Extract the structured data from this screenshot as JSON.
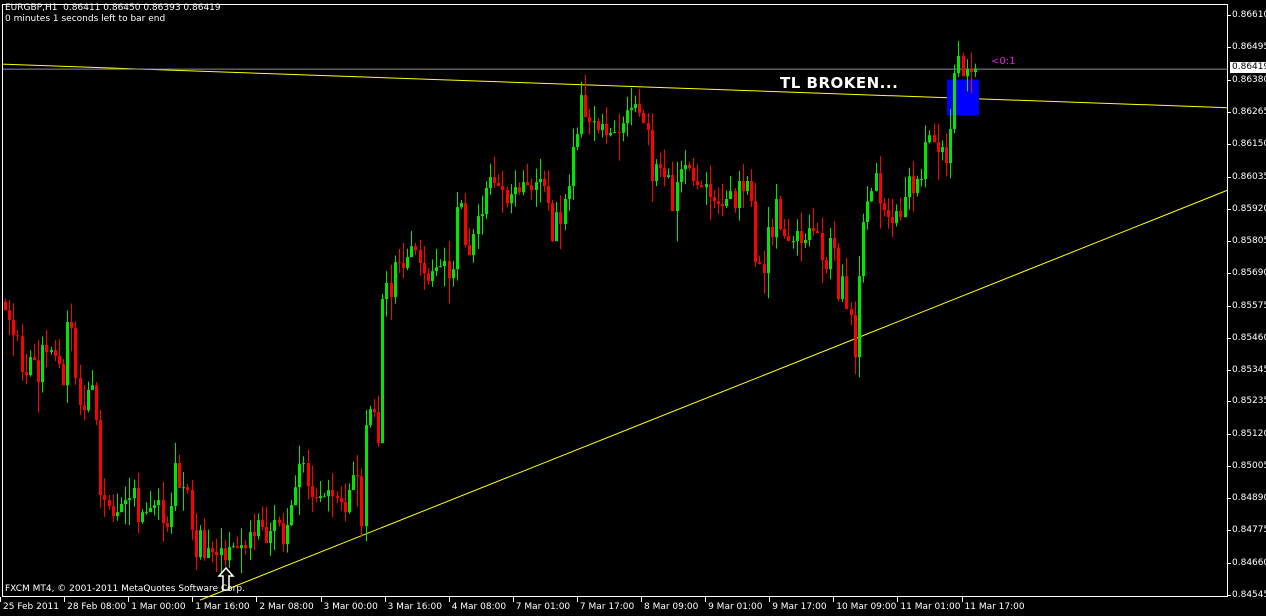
{
  "header": {
    "symbol_line": "EURGBP,H1  0.86411 0.86450 0.86393 0.86419",
    "timer": "0 minutes 1 seconds left to bar end"
  },
  "footer": "FXCM MT4, © 2001-2011 MetaQuotes Software Corp.",
  "annotation": "TL BROKEN...",
  "order_tag": "<0:1",
  "colors": {
    "background": "#000000",
    "bull": "#00e600",
    "bear": "#ff0000",
    "trendline": "#ffff00",
    "axis": "#ffffff",
    "highlight_box": "#0000ff",
    "bid_line": "#8c8c8c",
    "order_tag": "#e020e0"
  },
  "chart_data": {
    "type": "candlestick",
    "symbol": "EURGBP",
    "timeframe": "H1",
    "ylim": [
      0.84545,
      0.8661
    ],
    "price_ticks": [
      "0.86610",
      "0.86495",
      "0.86380",
      "0.86265",
      "0.86150",
      "0.86035",
      "0.85920",
      "0.85805",
      "0.85690",
      "0.85575",
      "0.85460",
      "0.85345",
      "0.85235",
      "0.85120",
      "0.85005",
      "0.84890",
      "0.84775",
      "0.84660",
      "0.84545"
    ],
    "bid": "0.86419",
    "time_labels": [
      "25 Feb 2011",
      "28 Feb 08:00",
      "1 Mar 00:00",
      "1 Mar 16:00",
      "2 Mar 08:00",
      "3 Mar 00:00",
      "3 Mar 16:00",
      "4 Mar 08:00",
      "7 Mar 01:00",
      "7 Mar 17:00",
      "8 Mar 09:00",
      "9 Mar 01:00",
      "9 Mar 17:00",
      "10 Mar 09:00",
      "11 Mar 01:00",
      "11 Mar 17:00"
    ],
    "close": [
      0.85559,
      0.85524,
      0.8547,
      0.85467,
      0.85339,
      0.85328,
      0.85392,
      0.85381,
      0.85303,
      0.85435,
      0.8541,
      0.85417,
      0.85396,
      0.85367,
      0.85292,
      0.85517,
      0.85495,
      0.85317,
      0.85221,
      0.85203,
      0.85275,
      0.85292,
      0.85168,
      0.84901,
      0.84883,
      0.84862,
      0.84826,
      0.8484,
      0.84869,
      0.84883,
      0.8489,
      0.84926,
      0.84805,
      0.8484,
      0.8484,
      0.84855,
      0.84865,
      0.84883,
      0.84801,
      0.84787,
      0.84862,
      0.85015,
      0.84926,
      0.84929,
      0.84919,
      0.84776,
      0.8468,
      0.84776,
      0.84677,
      0.84712,
      0.84698,
      0.84687,
      0.84712,
      0.84669,
      0.84716,
      0.84719,
      0.84712,
      0.84723,
      0.84712,
      0.84769,
      0.84755,
      0.84812,
      0.84787,
      0.8473,
      0.84773,
      0.84812,
      0.84801,
      0.84726,
      0.84794,
      0.84865,
      0.84929,
      0.85011,
      0.85015,
      0.84933,
      0.84894,
      0.8489,
      0.84897,
      0.84897,
      0.84919,
      0.84897,
      0.8489,
      0.84876,
      0.8484,
      0.84919,
      0.84972,
      0.84968,
      0.8479,
      0.8515,
      0.85207,
      0.85196,
      0.85086,
      0.85599,
      0.85656,
      0.85606,
      0.8573,
      0.85727,
      0.85709,
      0.85748,
      0.85787,
      0.85773,
      0.85727,
      0.85691,
      0.85663,
      0.85698,
      0.85712,
      0.85716,
      0.85734,
      0.85673,
      0.85705,
      0.85926,
      0.8594,
      0.85791,
      0.85755,
      0.8583,
      0.85894,
      0.85901,
      0.85994,
      0.86033,
      0.86012,
      0.86001,
      0.85987,
      0.8594,
      0.85972,
      0.85997,
      0.85979,
      0.86015,
      0.86004,
      0.85987,
      0.86015,
      0.86026,
      0.86001,
      0.8594,
      0.85805,
      0.85908,
      0.85866,
      0.85955,
      0.86001,
      0.8614,
      0.86186,
      0.86325,
      0.86246,
      0.86229,
      0.86232,
      0.862,
      0.86222,
      0.86182,
      0.8619,
      0.86193,
      0.8619,
      0.86225,
      0.86271,
      0.86279,
      0.86293,
      0.86261,
      0.86225,
      0.862,
      0.86019,
      0.86079,
      0.86065,
      0.86033,
      0.8604,
      0.85912,
      0.86015,
      0.86061,
      0.86076,
      0.86065,
      0.86019,
      0.86004,
      0.85997,
      0.86008,
      0.85962,
      0.85947,
      0.85937,
      0.8593,
      0.85955,
      0.85983,
      0.85923,
      0.86019,
      0.85983,
      0.86019,
      0.85947,
      0.8573,
      0.85723,
      0.85691,
      0.85855,
      0.85819,
      0.85955,
      0.85848,
      0.85823,
      0.85805,
      0.85805,
      0.85841,
      0.85798,
      0.85809,
      0.85851,
      0.85841,
      0.85834,
      0.85737,
      0.85705,
      0.85816,
      0.8578,
      0.85599,
      0.8568,
      0.85563,
      0.85542,
      0.85392,
      0.8568,
      0.85873,
      0.85947,
      0.85983,
      0.86047,
      0.8594,
      0.85915,
      0.8589,
      0.85869,
      0.85912,
      0.8589,
      0.85962,
      0.86036,
      0.85976,
      0.86026,
      0.86026,
      0.86157,
      0.86182,
      0.86157,
      0.86122,
      0.8614,
      0.86083,
      0.86204,
      0.86403,
      0.86464,
      0.86392,
      0.86417,
      0.86407,
      0.86419
    ],
    "trendlines": [
      {
        "name": "resistance",
        "price_left": 0.86435,
        "price_right": 0.8628
      },
      {
        "name": "support",
        "price_start": 0.84527,
        "price_right": 0.85987
      }
    ],
    "highlight_zone": {
      "price_top": 0.8638,
      "price_bottom": 0.86252
    }
  }
}
